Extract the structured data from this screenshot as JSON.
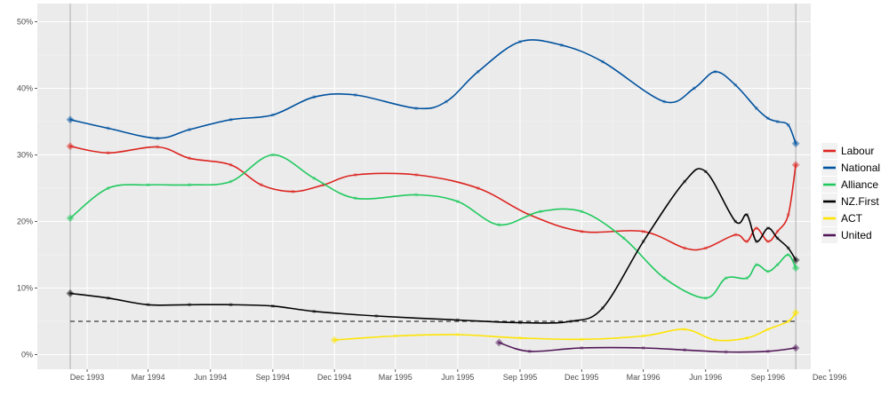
{
  "chart_data": {
    "type": "line",
    "title": "",
    "xlabel": "",
    "ylabel": "",
    "x_ticks": [
      "Dec 1993",
      "Mar 1994",
      "Jun 1994",
      "Sep 1994",
      "Dec 1994",
      "Mar 1995",
      "Jun 1995",
      "Sep 1995",
      "Dec 1995",
      "Mar 1996",
      "Jun 1996",
      "Sep 1996",
      "Dec 1996"
    ],
    "y_ticks": [
      "0%",
      "10%",
      "20%",
      "30%",
      "40%",
      "50%"
    ],
    "ylim": [
      0,
      50
    ],
    "threshold_line": 5,
    "grid": true,
    "legend_position": "right",
    "series": [
      {
        "name": "Labour",
        "color": "#dc241f",
        "x": [
          "1993-11-06",
          "1994-01-01",
          "1994-03-15",
          "1994-05-01",
          "1994-07-01",
          "1994-08-15",
          "1994-10-01",
          "1994-11-15",
          "1995-01-01",
          "1995-04-01",
          "1995-07-01",
          "1995-09-15",
          "1995-12-01",
          "1996-03-01",
          "1996-05-01",
          "1996-06-01",
          "1996-07-15",
          "1996-08-01",
          "1996-08-15",
          "1996-09-01",
          "1996-09-15",
          "1996-10-01",
          "1996-10-12"
        ],
        "y": [
          31.3,
          30.3,
          31.2,
          29.5,
          28.5,
          25.5,
          24.5,
          25.5,
          27.0,
          27.0,
          25.0,
          21.0,
          18.5,
          18.5,
          16.0,
          16.0,
          18.0,
          17.0,
          19.0,
          17.0,
          18.5,
          21.0,
          28.5
        ]
      },
      {
        "name": "National",
        "color": "#00529f",
        "x": [
          "1993-11-06",
          "1994-01-01",
          "1994-03-15",
          "1994-05-01",
          "1994-07-01",
          "1994-09-01",
          "1994-11-01",
          "1995-01-01",
          "1995-04-01",
          "1995-05-15",
          "1995-07-01",
          "1995-09-01",
          "1995-11-01",
          "1996-01-01",
          "1996-04-01",
          "1996-05-15",
          "1996-06-15",
          "1996-07-15",
          "1996-08-15",
          "1996-09-01",
          "1996-09-15",
          "1996-10-01",
          "1996-10-12"
        ],
        "y": [
          35.3,
          34.0,
          32.5,
          33.8,
          35.3,
          36.0,
          38.7,
          39.0,
          37.0,
          38.0,
          42.5,
          47.0,
          46.5,
          44.0,
          38.0,
          40.0,
          42.5,
          40.5,
          37.0,
          35.5,
          35.0,
          34.5,
          31.7
        ]
      },
      {
        "name": "Alliance",
        "color": "#20c95e",
        "x": [
          "1993-11-06",
          "1994-01-01",
          "1994-03-01",
          "1994-05-01",
          "1994-07-01",
          "1994-09-01",
          "1994-11-01",
          "1995-01-01",
          "1995-04-01",
          "1995-06-01",
          "1995-08-01",
          "1995-10-01",
          "1995-12-01",
          "1996-02-01",
          "1996-04-01",
          "1996-06-01",
          "1996-07-01",
          "1996-08-01",
          "1996-08-15",
          "1996-09-01",
          "1996-09-15",
          "1996-10-01",
          "1996-10-12"
        ],
        "y": [
          20.5,
          25.0,
          25.5,
          25.5,
          26.0,
          30.0,
          26.5,
          23.5,
          24.0,
          23.0,
          19.5,
          21.5,
          21.5,
          17.5,
          11.5,
          8.5,
          11.5,
          11.5,
          13.5,
          12.5,
          13.5,
          15.0,
          13.0
        ]
      },
      {
        "name": "NZ.First",
        "color": "#000000",
        "x": [
          "1993-11-06",
          "1994-01-01",
          "1994-03-01",
          "1994-05-01",
          "1994-07-01",
          "1994-09-01",
          "1994-11-01",
          "1995-02-01",
          "1995-06-01",
          "1995-09-01",
          "1995-11-15",
          "1996-01-01",
          "1996-03-01",
          "1996-05-01",
          "1996-06-01",
          "1996-07-15",
          "1996-08-01",
          "1996-08-15",
          "1996-09-01",
          "1996-09-15",
          "1996-10-01",
          "1996-10-12"
        ],
        "y": [
          9.2,
          8.5,
          7.5,
          7.5,
          7.5,
          7.3,
          6.5,
          5.8,
          5.2,
          4.8,
          5.0,
          7.0,
          17.0,
          26.0,
          27.5,
          20.0,
          21.0,
          17.0,
          19.0,
          17.5,
          16.0,
          14.2
        ]
      },
      {
        "name": "ACT",
        "color": "#fde401",
        "x": [
          "1994-12-01",
          "1995-03-01",
          "1995-06-01",
          "1995-09-01",
          "1995-12-01",
          "1996-03-01",
          "1996-05-01",
          "1996-06-15",
          "1996-08-01",
          "1996-09-01",
          "1996-10-01",
          "1996-10-12"
        ],
        "y": [
          2.2,
          2.8,
          3.0,
          2.5,
          2.3,
          2.8,
          3.8,
          2.2,
          2.5,
          3.8,
          5.0,
          6.3
        ]
      },
      {
        "name": "United",
        "color": "#501557",
        "x": [
          "1995-08-01",
          "1995-09-15",
          "1995-12-01",
          "1996-03-01",
          "1996-05-01",
          "1996-07-01",
          "1996-09-01",
          "1996-10-12"
        ],
        "y": [
          1.8,
          0.5,
          1.0,
          1.0,
          0.7,
          0.4,
          0.5,
          1.0
        ]
      }
    ]
  }
}
